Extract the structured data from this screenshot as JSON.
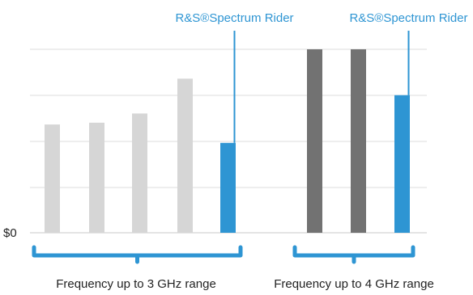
{
  "chart_data": {
    "type": "bar",
    "title": "",
    "xlabel": "",
    "ylabel": "",
    "y_tick_labels": [
      "$0"
    ],
    "ylim": [
      0,
      100
    ],
    "grid": true,
    "groups": [
      {
        "label": "Frequency up to 3 GHz range",
        "bars": [
          {
            "value": 59,
            "color": "#d6d6d6"
          },
          {
            "value": 60,
            "color": "#d6d6d6"
          },
          {
            "value": 65,
            "color": "#d6d6d6"
          },
          {
            "value": 84,
            "color": "#d6d6d6"
          },
          {
            "value": 49,
            "color": "#2e95d3",
            "callout": "R&S®Spectrum Rider"
          }
        ]
      },
      {
        "label": "Frequency up to 4 GHz range",
        "bars": [
          {
            "value": 100,
            "color": "#727272"
          },
          {
            "value": 100,
            "color": "#727272"
          },
          {
            "value": 75,
            "color": "#2e95d3",
            "callout": "R&S®Spectrum Rider"
          }
        ]
      }
    ]
  },
  "colors": {
    "accent": "#2e95d3",
    "grid": "#dcdcdc",
    "baseline": "#c8c8c8"
  }
}
